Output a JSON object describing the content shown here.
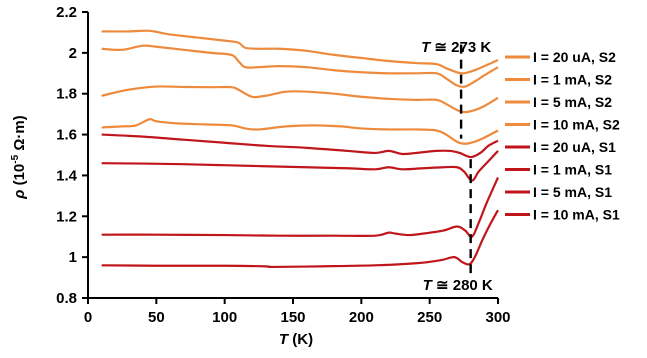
{
  "chart_data": {
    "type": "line",
    "xlabel_var": "T",
    "xlabel_unit": " (K)",
    "ylabel_var": "ρ",
    "ylabel_unit_pre": " (10",
    "ylabel_exp": "-5",
    "ylabel_unit_post": " Ω·m)",
    "xlim": [
      0,
      300
    ],
    "ylim": [
      0.8,
      2.2
    ],
    "xticks": [
      "0",
      "50",
      "100",
      "150",
      "200",
      "250",
      "300"
    ],
    "yticks": [
      "0.8",
      "1",
      "1.2",
      "1.4",
      "1.6",
      "1.8",
      "2",
      "2.2"
    ],
    "grid": false,
    "legend_position": "right",
    "colors": {
      "S2": "#ee8a3c",
      "S1": "#c0161b"
    },
    "annotations": [
      {
        "text": "T ≅ 273 K",
        "var": "T",
        "rest": " ≅ 273 K",
        "x": 273,
        "y_from": 1.58,
        "y_to": 2.04
      },
      {
        "text": "T ≅ 280 K",
        "var": "T",
        "rest": " ≅ 280 K",
        "x": 280,
        "y_from": 0.92,
        "y_to": 1.48
      }
    ],
    "series": [
      {
        "name": "I = 20 uA, S2",
        "color": "#ee8a3c",
        "x": [
          10,
          30,
          45,
          60,
          80,
          100,
          110,
          115,
          125,
          140,
          160,
          180,
          200,
          220,
          240,
          255,
          262,
          270,
          275,
          283,
          290,
          300
        ],
        "y": [
          2.105,
          2.105,
          2.108,
          2.09,
          2.075,
          2.06,
          2.05,
          2.025,
          2.02,
          2.02,
          2.01,
          1.99,
          1.975,
          1.96,
          1.95,
          1.945,
          1.925,
          1.905,
          1.9,
          1.915,
          1.935,
          1.965
        ]
      },
      {
        "name": "I = 1 mA, S2",
        "color": "#ee8a3c",
        "x": [
          10,
          25,
          40,
          50,
          70,
          90,
          105,
          110,
          115,
          125,
          140,
          160,
          180,
          200,
          220,
          240,
          255,
          262,
          270,
          276,
          283,
          290,
          300
        ],
        "y": [
          2.02,
          2.015,
          2.035,
          2.03,
          2.015,
          2.0,
          1.99,
          1.96,
          1.93,
          1.93,
          1.935,
          1.93,
          1.915,
          1.905,
          1.9,
          1.9,
          1.9,
          1.875,
          1.84,
          1.835,
          1.86,
          1.89,
          1.93
        ]
      },
      {
        "name": "I = 5 mA, S2",
        "color": "#ee8a3c",
        "x": [
          10,
          30,
          50,
          70,
          90,
          105,
          110,
          120,
          130,
          145,
          160,
          180,
          200,
          220,
          240,
          255,
          262,
          270,
          276,
          283,
          290,
          300
        ],
        "y": [
          1.79,
          1.82,
          1.835,
          1.833,
          1.832,
          1.832,
          1.82,
          1.785,
          1.79,
          1.81,
          1.81,
          1.8,
          1.785,
          1.775,
          1.77,
          1.77,
          1.75,
          1.72,
          1.71,
          1.72,
          1.74,
          1.78
        ]
      },
      {
        "name": "I = 10 mA, S2",
        "color": "#ee8a3c",
        "x": [
          10,
          25,
          35,
          45,
          50,
          65,
          85,
          105,
          115,
          125,
          145,
          165,
          185,
          200,
          220,
          240,
          255,
          262,
          270,
          276,
          283,
          290,
          300
        ],
        "y": [
          1.635,
          1.64,
          1.645,
          1.675,
          1.665,
          1.655,
          1.65,
          1.645,
          1.63,
          1.625,
          1.64,
          1.645,
          1.64,
          1.63,
          1.625,
          1.625,
          1.62,
          1.6,
          1.565,
          1.555,
          1.565,
          1.585,
          1.62
        ]
      },
      {
        "name": "I = 20 uA, S1",
        "color": "#c0161b",
        "x": [
          10,
          40,
          70,
          100,
          130,
          160,
          190,
          210,
          220,
          230,
          240,
          255,
          265,
          272,
          280,
          287,
          293,
          300
        ],
        "y": [
          1.6,
          1.59,
          1.575,
          1.56,
          1.545,
          1.535,
          1.52,
          1.51,
          1.52,
          1.505,
          1.51,
          1.52,
          1.52,
          1.51,
          1.49,
          1.51,
          1.545,
          1.57
        ]
      },
      {
        "name": "I = 1 mA, S1",
        "color": "#c0161b",
        "x": [
          10,
          40,
          70,
          100,
          130,
          160,
          190,
          210,
          220,
          230,
          245,
          260,
          270,
          275,
          281,
          286,
          293,
          300
        ],
        "y": [
          1.46,
          1.458,
          1.455,
          1.45,
          1.445,
          1.44,
          1.435,
          1.43,
          1.44,
          1.43,
          1.435,
          1.44,
          1.44,
          1.42,
          1.375,
          1.42,
          1.47,
          1.52
        ]
      },
      {
        "name": "I = 5 mA, S1",
        "color": "#c0161b",
        "x": [
          10,
          50,
          100,
          140,
          180,
          210,
          220,
          225,
          235,
          245,
          260,
          270,
          276,
          281,
          286,
          292,
          300
        ],
        "y": [
          1.11,
          1.11,
          1.108,
          1.105,
          1.105,
          1.105,
          1.12,
          1.115,
          1.108,
          1.115,
          1.13,
          1.15,
          1.13,
          1.1,
          1.17,
          1.27,
          1.39
        ]
      },
      {
        "name": "I = 10 mA, S1",
        "color": "#c0161b",
        "x": [
          10,
          50,
          100,
          130,
          135,
          170,
          210,
          240,
          258,
          268,
          274,
          279,
          283,
          289,
          295,
          300
        ],
        "y": [
          0.96,
          0.958,
          0.958,
          0.955,
          0.952,
          0.955,
          0.96,
          0.97,
          0.985,
          1.0,
          0.975,
          0.965,
          1.0,
          1.09,
          1.17,
          1.23
        ]
      }
    ]
  }
}
